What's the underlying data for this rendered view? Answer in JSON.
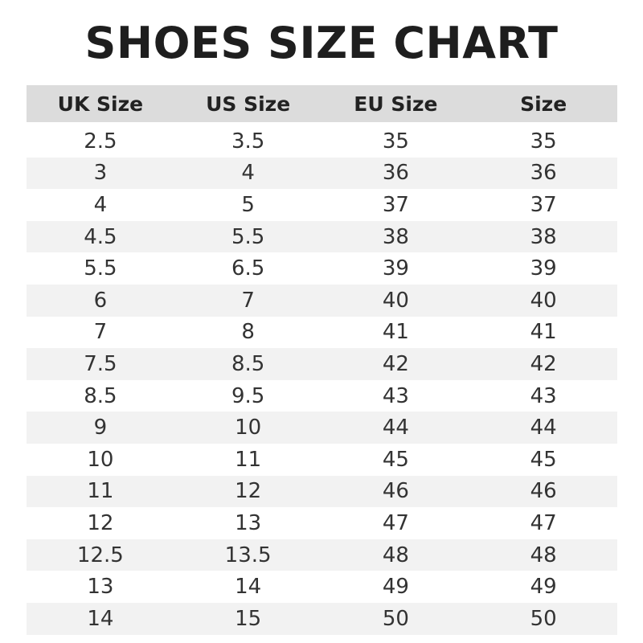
{
  "title": "SHOES SIZE CHART",
  "headers": [
    "UK Size",
    "US Size",
    "EU Size",
    "Size"
  ],
  "rows": [
    [
      "2.5",
      "3.5",
      "35",
      "35"
    ],
    [
      "3",
      "4",
      "36",
      "36"
    ],
    [
      "4",
      "5",
      "37",
      "37"
    ],
    [
      "4.5",
      "5.5",
      "38",
      "38"
    ],
    [
      "5.5",
      "6.5",
      "39",
      "39"
    ],
    [
      "6",
      "7",
      "40",
      "40"
    ],
    [
      "7",
      "8",
      "41",
      "41"
    ],
    [
      "7.5",
      "8.5",
      "42",
      "42"
    ],
    [
      "8.5",
      "9.5",
      "43",
      "43"
    ],
    [
      "9",
      "10",
      "44",
      "44"
    ],
    [
      "10",
      "11",
      "45",
      "45"
    ],
    [
      "11",
      "12",
      "46",
      "46"
    ],
    [
      "12",
      "13",
      "47",
      "47"
    ],
    [
      "12.5",
      "13.5",
      "48",
      "48"
    ],
    [
      "13",
      "14",
      "49",
      "49"
    ],
    [
      "14",
      "15",
      "50",
      "50"
    ]
  ],
  "colors": {
    "header_bg": "#dcdcdc",
    "stripe_bg": "#f2f2f2",
    "text": "#333333"
  }
}
